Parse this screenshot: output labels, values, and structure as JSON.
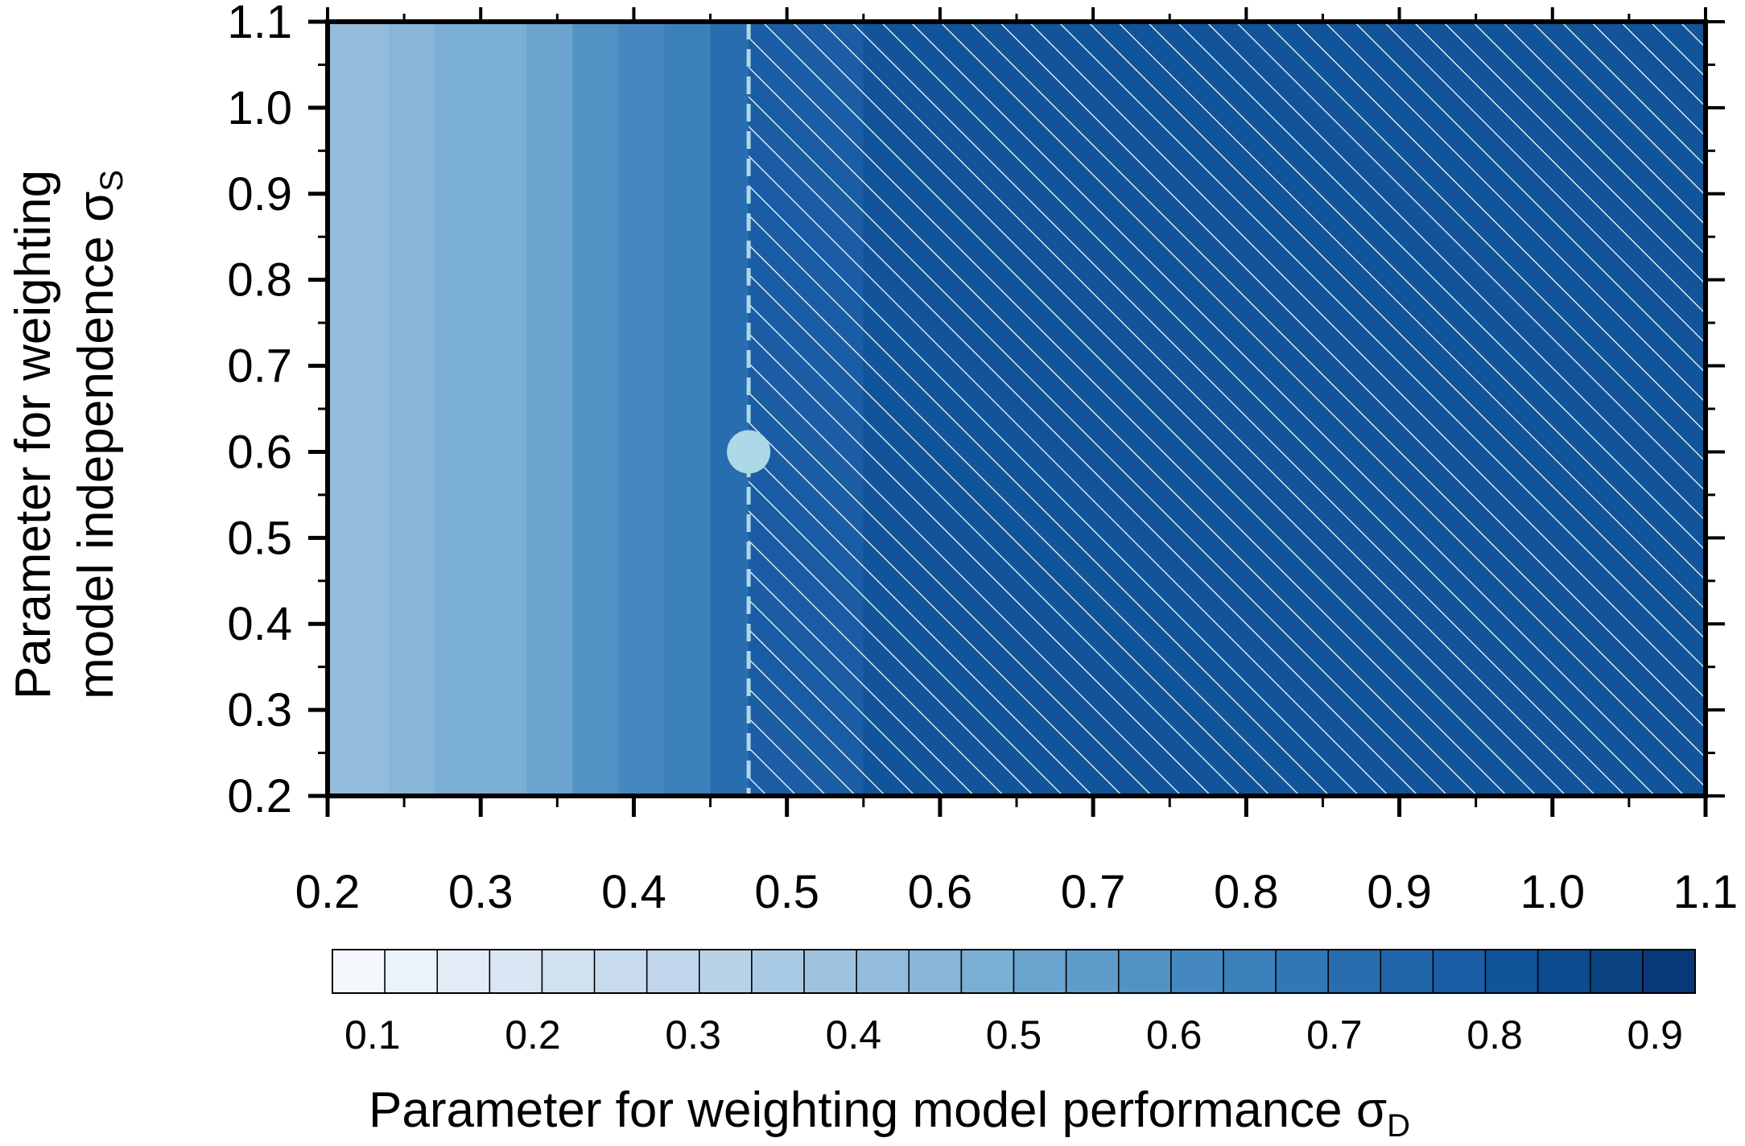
{
  "chart_data": {
    "type": "heatmap",
    "title": "",
    "xlabel": "Parameter for weighting model performance σ",
    "xlabel_sub": "D",
    "ylabel_line1": "Parameter for weighting",
    "ylabel_line2": "model independence σ",
    "ylabel_sub": "S",
    "xlim": [
      0.2,
      1.1
    ],
    "ylim": [
      0.2,
      1.1
    ],
    "x_ticks": [
      "0.2",
      "0.3",
      "0.4",
      "0.5",
      "0.6",
      "0.7",
      "0.8",
      "0.9",
      "1.0",
      "1.1"
    ],
    "y_ticks": [
      "0.2",
      "0.3",
      "0.4",
      "0.5",
      "0.6",
      "0.7",
      "0.8",
      "0.9",
      "1.0",
      "1.1"
    ],
    "colorbar": {
      "levels": [
        0.1,
        0.2,
        0.3,
        0.4,
        0.5,
        0.6,
        0.7,
        0.8,
        0.9
      ],
      "tick_labels": [
        "0.1",
        "0.2",
        "0.3",
        "0.4",
        "0.5",
        "0.6",
        "0.7",
        "0.8",
        "0.9"
      ],
      "colors": [
        "#f4f8fc",
        "#eaf2fa",
        "#e2ecf7",
        "#dae6f3",
        "#d1e1f0",
        "#c8dbee",
        "#c0d6ec",
        "#b8d2e8",
        "#a9cae4",
        "#9ec3df",
        "#93bcdc",
        "#88b6d8",
        "#7aaed5",
        "#6ba4cf",
        "#5f9cca",
        "#5193c5",
        "#4588c0",
        "#3b80ba",
        "#3177b5",
        "#286db0",
        "#2065aa",
        "#1a5da4",
        "#125499",
        "#0c4b8e",
        "#0a4282",
        "#083877"
      ]
    },
    "heatmap_description": "Value increases with sigma_D, nearly independent of sigma_S; hatched region marks sigma_D greater than about 0.475",
    "columns": [
      {
        "x0": 0.2,
        "x1": 0.24,
        "value": 0.42
      },
      {
        "x0": 0.24,
        "x1": 0.27,
        "value": 0.44
      },
      {
        "x0": 0.27,
        "x1": 0.3,
        "value": 0.47
      },
      {
        "x0": 0.3,
        "x1": 0.33,
        "value": 0.5
      },
      {
        "x0": 0.33,
        "x1": 0.36,
        "value": 0.53
      },
      {
        "x0": 0.36,
        "x1": 0.39,
        "value": 0.57
      },
      {
        "x0": 0.39,
        "x1": 0.42,
        "value": 0.61
      },
      {
        "x0": 0.42,
        "x1": 0.45,
        "value": 0.66
      },
      {
        "x0": 0.45,
        "x1": 0.475,
        "value": 0.72
      },
      {
        "x0": 0.475,
        "x1": 0.55,
        "value": 0.78
      },
      {
        "x0": 0.55,
        "x1": 0.75,
        "value": 0.81
      },
      {
        "x0": 0.75,
        "x1": 0.95,
        "value": 0.82
      },
      {
        "x0": 0.95,
        "x1": 1.1,
        "value": 0.81
      }
    ],
    "hatch_region": {
      "x_start": 0.475,
      "x_end": 1.1
    },
    "dashed_line_x": 0.475,
    "marker": {
      "x": 0.475,
      "y": 0.6,
      "color": "#add8e6"
    },
    "accent_colors": {
      "hatch": "#ffffff",
      "dashed_line": "#add8e6",
      "frame": "#000000"
    }
  }
}
